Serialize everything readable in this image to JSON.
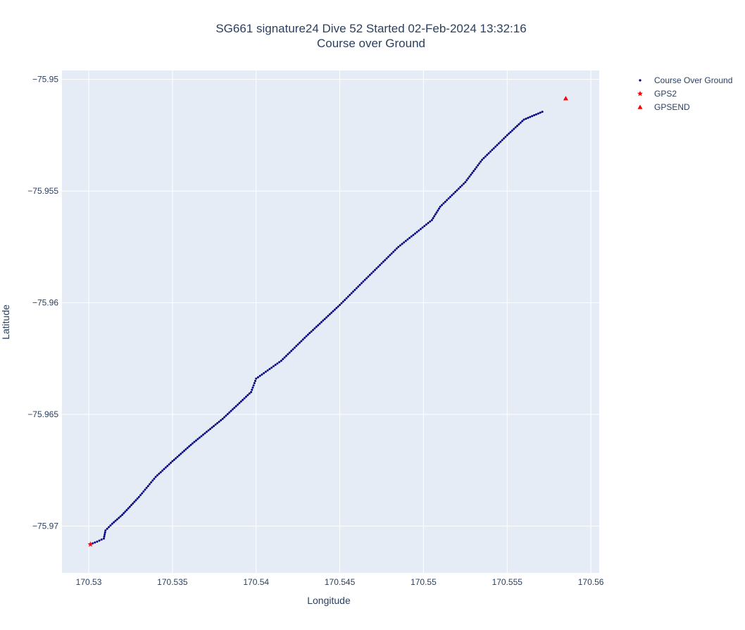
{
  "chart_data": {
    "type": "scatter",
    "title": "SG661 signature24 Dive 52 Started 02-Feb-2024 13:32:16",
    "subtitle": "Course over Ground",
    "xlabel": "Longitude",
    "ylabel": "Latitude",
    "xlim": [
      170.5284,
      170.5605
    ],
    "ylim": [
      -75.9721,
      -75.9496
    ],
    "xticks": [
      170.53,
      170.535,
      170.54,
      170.545,
      170.55,
      170.555,
      170.56
    ],
    "xtick_labels": [
      "170.53",
      "170.535",
      "170.54",
      "170.545",
      "170.55",
      "170.555",
      "170.56"
    ],
    "yticks": [
      -75.95,
      -75.955,
      -75.96,
      -75.965,
      -75.97
    ],
    "ytick_labels": [
      "−75.95",
      "−75.955",
      "−75.96",
      "−75.965",
      "−75.97"
    ],
    "grid": true,
    "legend_position": "top-right",
    "series": [
      {
        "name": "Course Over Ground",
        "marker": "dot",
        "color": "#00007f",
        "points": [
          [
            170.5301,
            -75.97082
          ],
          [
            170.5305,
            -75.9707
          ],
          [
            170.5309,
            -75.97056
          ],
          [
            170.531,
            -75.9702
          ],
          [
            170.5314,
            -75.9699
          ],
          [
            170.532,
            -75.9695
          ],
          [
            170.533,
            -75.9687
          ],
          [
            170.534,
            -75.9678
          ],
          [
            170.535,
            -75.9671
          ],
          [
            170.5362,
            -75.9663
          ],
          [
            170.538,
            -75.9652
          ],
          [
            170.5397,
            -75.964
          ],
          [
            170.54,
            -75.9634
          ],
          [
            170.5415,
            -75.9626
          ],
          [
            170.543,
            -75.9615
          ],
          [
            170.545,
            -75.9601
          ],
          [
            170.5462,
            -75.9592
          ],
          [
            170.5485,
            -75.9575
          ],
          [
            170.5505,
            -75.9563
          ],
          [
            170.551,
            -75.9557
          ],
          [
            170.5525,
            -75.9546
          ],
          [
            170.5535,
            -75.9536
          ],
          [
            170.555,
            -75.9525
          ],
          [
            170.556,
            -75.9518
          ],
          [
            170.5571,
            -75.95145
          ]
        ]
      },
      {
        "name": "GPS2",
        "marker": "star",
        "color": "#ff0000",
        "points": [
          [
            170.5301,
            -75.97082
          ]
        ]
      },
      {
        "name": "GPSEND",
        "marker": "triangle-up",
        "color": "#ff0000",
        "points": [
          [
            170.5585,
            -75.95085
          ]
        ]
      }
    ]
  }
}
